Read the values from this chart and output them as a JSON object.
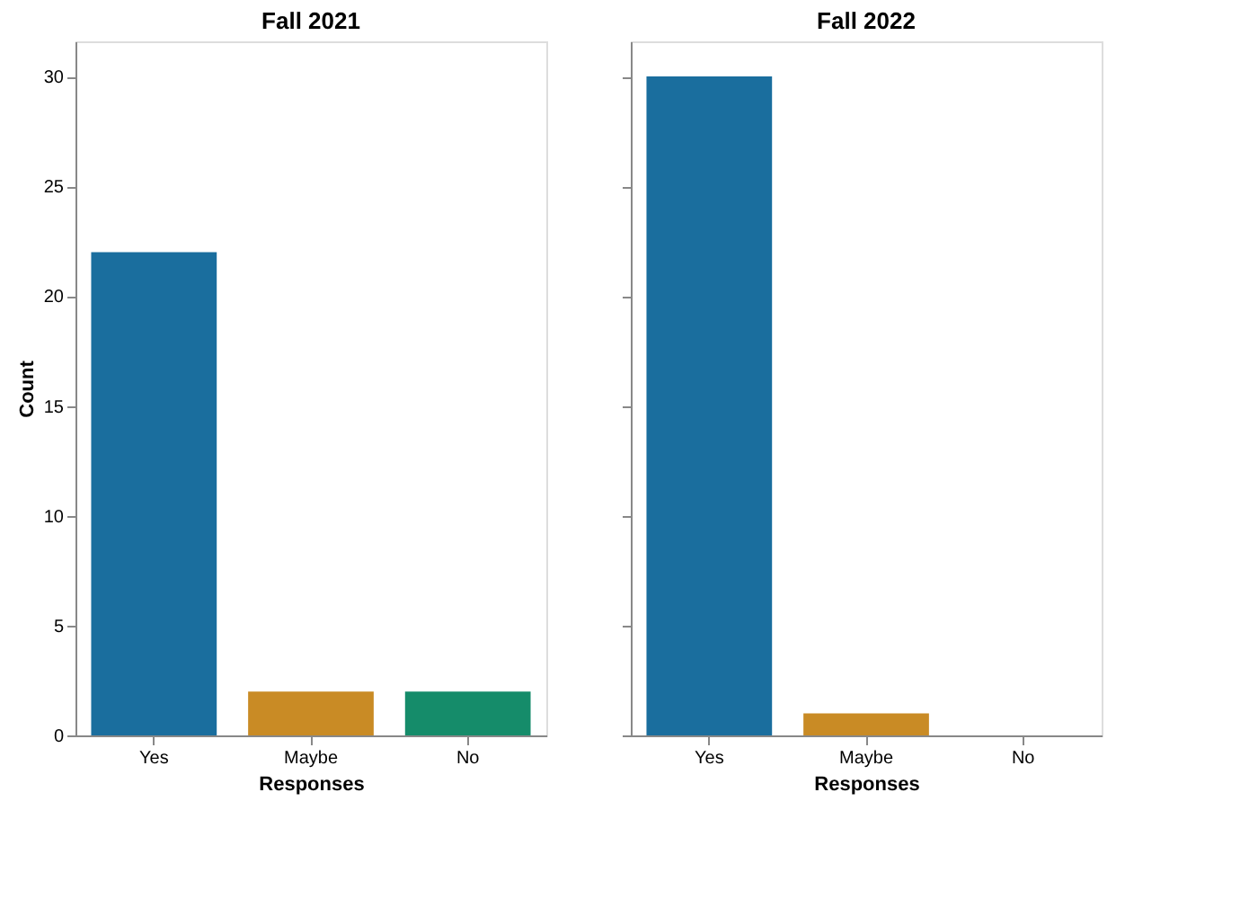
{
  "chart_data": [
    {
      "type": "bar",
      "title": "Fall 2021",
      "categories": [
        "Yes",
        "Maybe",
        "No"
      ],
      "values": [
        22,
        2,
        2
      ],
      "colors": [
        "#1a6e9e",
        "#c98b25",
        "#158c6a"
      ],
      "xlabel": "Responses",
      "ylabel": "Count",
      "ylim": [
        0,
        31.6
      ],
      "yticks": [
        0,
        5,
        10,
        15,
        20,
        25,
        30
      ],
      "grid": false
    },
    {
      "type": "bar",
      "title": "Fall 2022",
      "categories": [
        "Yes",
        "Maybe",
        "No"
      ],
      "values": [
        30,
        1,
        0
      ],
      "colors": [
        "#1a6e9e",
        "#c98b25",
        "#158c6a"
      ],
      "xlabel": "Responses",
      "ylim": [
        0,
        31.6
      ],
      "yticks": [
        0,
        5,
        10,
        15,
        20,
        25,
        30
      ],
      "grid": false,
      "tick_labels": "x"
    }
  ]
}
